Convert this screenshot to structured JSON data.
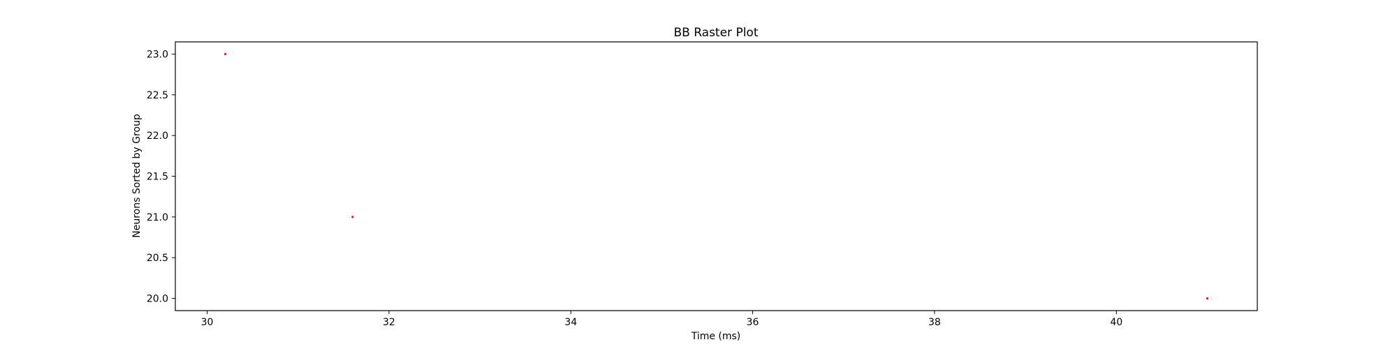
{
  "chart_data": {
    "type": "scatter",
    "title": "BB Raster Plot",
    "xlabel": "Time (ms)",
    "ylabel": "Neurons Sorted by Group",
    "xlim": [
      29.65,
      41.55
    ],
    "ylim": [
      19.85,
      23.15
    ],
    "xticks": [
      30,
      32,
      34,
      36,
      38,
      40
    ],
    "xtick_labels": [
      "30",
      "32",
      "34",
      "36",
      "38",
      "40"
    ],
    "yticks": [
      20.0,
      20.5,
      21.0,
      21.5,
      22.0,
      22.5,
      23.0
    ],
    "ytick_labels": [
      "20.0",
      "20.5",
      "21.0",
      "21.5",
      "22.0",
      "22.5",
      "23.0"
    ],
    "grid": false,
    "marker_color": "#ff0000",
    "points": [
      {
        "x": 30.2,
        "y": 23.0
      },
      {
        "x": 31.6,
        "y": 21.0
      },
      {
        "x": 41.0,
        "y": 20.0
      }
    ]
  }
}
